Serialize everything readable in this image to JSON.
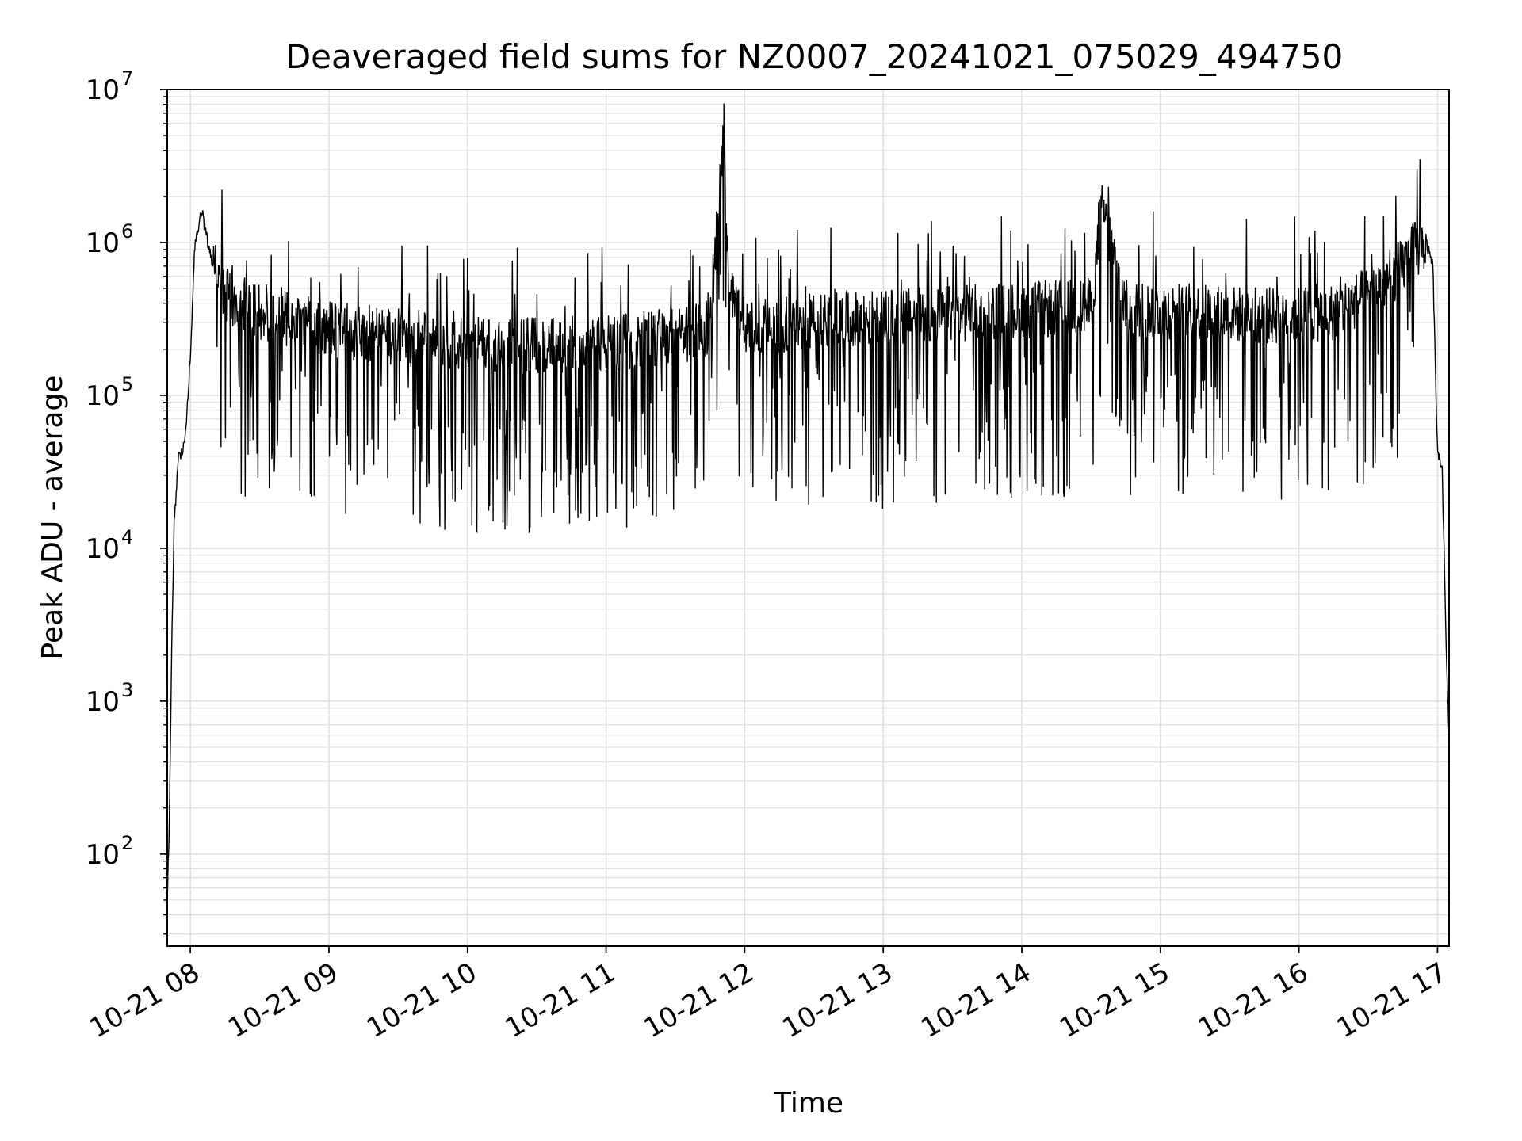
{
  "chart_data": {
    "type": "line",
    "title": "Deaveraged field sums for NZ0007_20241021_075029_494750",
    "xlabel": "Time",
    "ylabel": "Peak ADU - average",
    "yscale": "log",
    "ylim": [
      25,
      10000000
    ],
    "xlim": [
      "2024-10-21 07:50",
      "2024-10-21 17:05"
    ],
    "grid": true,
    "line_color": "#000000",
    "grid_color": "#e0e0e0",
    "x_ticks": [
      {
        "label": "10-21 08",
        "value": "2024-10-21 08:00"
      },
      {
        "label": "10-21 09",
        "value": "2024-10-21 09:00"
      },
      {
        "label": "10-21 10",
        "value": "2024-10-21 10:00"
      },
      {
        "label": "10-21 11",
        "value": "2024-10-21 11:00"
      },
      {
        "label": "10-21 12",
        "value": "2024-10-21 12:00"
      },
      {
        "label": "10-21 13",
        "value": "2024-10-21 13:00"
      },
      {
        "label": "10-21 14",
        "value": "2024-10-21 14:00"
      },
      {
        "label": "10-21 15",
        "value": "2024-10-21 15:00"
      },
      {
        "label": "10-21 16",
        "value": "2024-10-21 16:00"
      },
      {
        "label": "10-21 17",
        "value": "2024-10-21 17:00"
      }
    ],
    "y_ticks": [
      {
        "base": "10",
        "exp": "2",
        "value": 100
      },
      {
        "base": "10",
        "exp": "3",
        "value": 1000
      },
      {
        "base": "10",
        "exp": "4",
        "value": 10000
      },
      {
        "base": "10",
        "exp": "5",
        "value": 100000
      },
      {
        "base": "10",
        "exp": "6",
        "value": 1000000
      },
      {
        "base": "10",
        "exp": "7",
        "value": 10000000
      }
    ],
    "series": [
      {
        "x": [
          "2024-10-21 07:50",
          "2024-10-21 07:51",
          "2024-10-21 07:52",
          "2024-10-21 07:53",
          "2024-10-21 07:55",
          "2024-10-21 07:57",
          "2024-10-21 07:58",
          "2024-10-21 08:00",
          "2024-10-21 08:02",
          "2024-10-21 08:05",
          "2024-10-21 08:08",
          "2024-10-21 08:10",
          "2024-10-21 08:15",
          "2024-10-21 08:20",
          "2024-10-21 08:25",
          "2024-10-21 08:30",
          "2024-10-21 08:40",
          "2024-10-21 08:50",
          "2024-10-21 09:00",
          "2024-10-21 09:10",
          "2024-10-21 09:20",
          "2024-10-21 09:30",
          "2024-10-21 09:45",
          "2024-10-21 10:00",
          "2024-10-21 10:15",
          "2024-10-21 10:30",
          "2024-10-21 10:45",
          "2024-10-21 11:00",
          "2024-10-21 11:15",
          "2024-10-21 11:30",
          "2024-10-21 11:45",
          "2024-10-21 11:50",
          "2024-10-21 11:51",
          "2024-10-21 11:53",
          "2024-10-21 12:00",
          "2024-10-21 12:15",
          "2024-10-21 12:30",
          "2024-10-21 12:45",
          "2024-10-21 13:00",
          "2024-10-21 13:15",
          "2024-10-21 13:30",
          "2024-10-21 13:45",
          "2024-10-21 14:00",
          "2024-10-21 14:15",
          "2024-10-21 14:30",
          "2024-10-21 14:35",
          "2024-10-21 14:45",
          "2024-10-21 15:00",
          "2024-10-21 15:15",
          "2024-10-21 15:30",
          "2024-10-21 15:45",
          "2024-10-21 16:00",
          "2024-10-21 16:15",
          "2024-10-21 16:30",
          "2024-10-21 16:40",
          "2024-10-21 16:45",
          "2024-10-21 16:50",
          "2024-10-21 16:55",
          "2024-10-21 16:58",
          "2024-10-21 17:00",
          "2024-10-21 17:02",
          "2024-10-21 17:04",
          "2024-10-21 17:05"
        ],
        "y": [
          45,
          200,
          2500,
          15000,
          40000,
          45000,
          60000,
          180000,
          1000000,
          1600000,
          900000,
          700000,
          450000,
          400000,
          380000,
          350000,
          330000,
          300000,
          270000,
          260000,
          250000,
          240000,
          230000,
          220000,
          210000,
          210000,
          215000,
          220000,
          230000,
          240000,
          280000,
          3500000,
          5500000,
          500000,
          280000,
          290000,
          300000,
          310000,
          320000,
          330000,
          340000,
          350000,
          360000,
          370000,
          380000,
          1700000,
          370000,
          360000,
          350000,
          340000,
          330000,
          340000,
          350000,
          450000,
          600000,
          700000,
          900000,
          1000000,
          700000,
          40000,
          35000,
          1500,
          600
        ]
      }
    ]
  }
}
